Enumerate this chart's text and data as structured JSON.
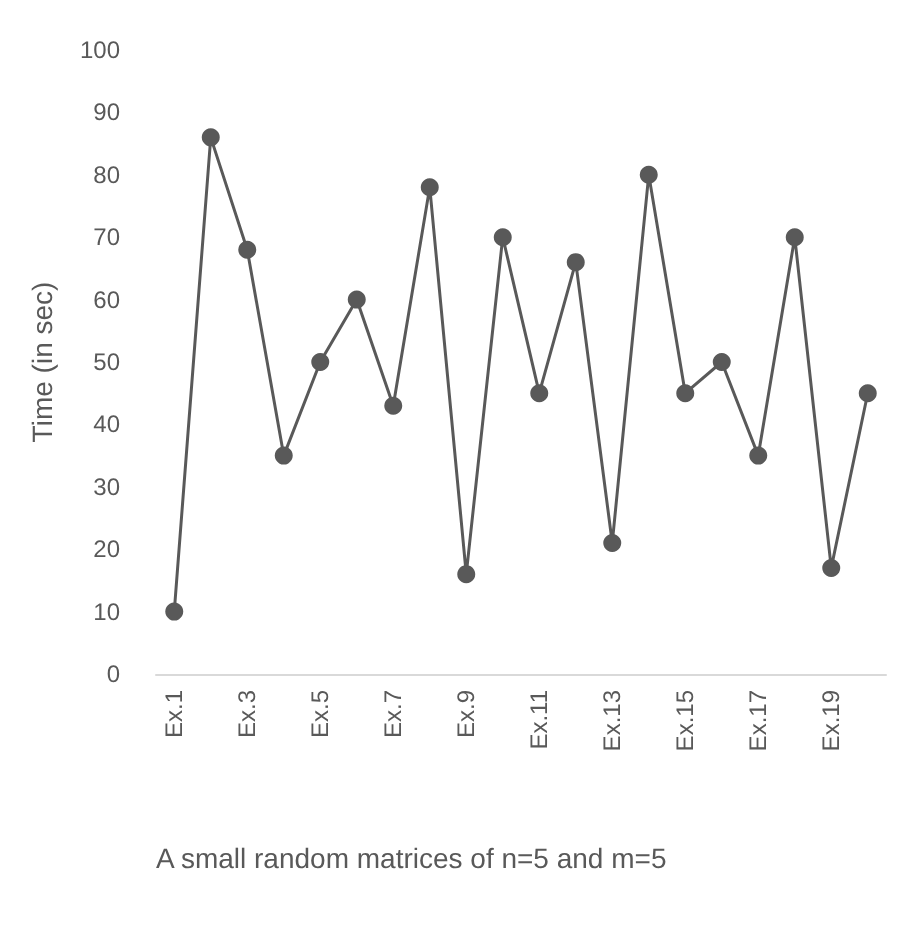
{
  "chart_data": {
    "type": "line",
    "xlabel": "A small random matrices of n=5 and m=5",
    "ylabel": "Time (in sec)",
    "categories": [
      "Ex.1",
      null,
      "Ex.3",
      null,
      "Ex.5",
      null,
      "Ex.7",
      null,
      "Ex.9",
      null,
      "Ex.11",
      null,
      "Ex.13",
      null,
      "Ex.15",
      null,
      "Ex.17",
      null,
      "Ex.19",
      null
    ],
    "series": [
      {
        "color": "#595959",
        "values": [
          10,
          86,
          68,
          35,
          50,
          60,
          43,
          78,
          16,
          70,
          45,
          66,
          21,
          80,
          45,
          50,
          35,
          70,
          17,
          45
        ]
      }
    ],
    "ylim": [
      0,
      100
    ],
    "yticks": [
      0,
      10,
      20,
      30,
      40,
      50,
      60,
      70,
      80,
      90,
      100
    ],
    "grid": false,
    "marker": "circle",
    "line_style": "solid"
  }
}
